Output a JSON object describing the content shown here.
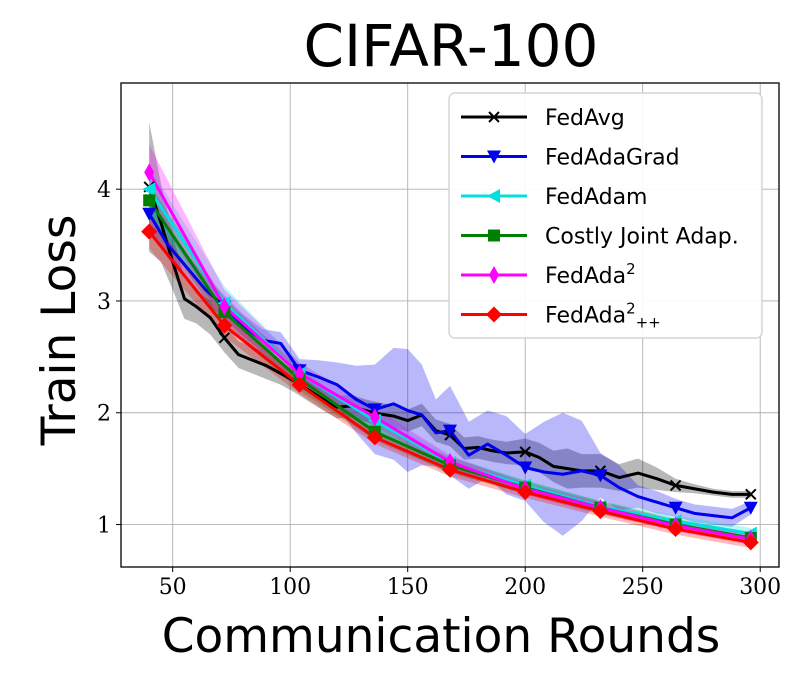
{
  "chart_data": {
    "type": "line",
    "title": "CIFAR-100",
    "xlabel": "Communication Rounds",
    "ylabel": "Train Loss",
    "xlim": [
      28,
      308
    ],
    "ylim": [
      0.62,
      4.95
    ],
    "xticks": [
      50,
      100,
      150,
      200,
      250,
      300
    ],
    "yticks": [
      1,
      2,
      3,
      4
    ],
    "xtick_labels": [
      "50",
      "100",
      "150",
      "200",
      "250",
      "300"
    ],
    "ytick_labels": [
      "1",
      "2",
      "3",
      "4"
    ],
    "grid": true,
    "legend_position": "top-right",
    "marker_x": [
      40,
      72,
      104,
      136,
      168,
      200,
      232,
      264,
      296
    ],
    "series": [
      {
        "name": "FedAvg",
        "color": "#000000",
        "marker": "x",
        "x": [
          40,
          45,
          50,
          55,
          60,
          66,
          72,
          78,
          84,
          90,
          96,
          102,
          108,
          114,
          120,
          126,
          132,
          138,
          144,
          150,
          156,
          162,
          168,
          174,
          180,
          186,
          192,
          200,
          206,
          212,
          218,
          224,
          232,
          240,
          248,
          256,
          264,
          272,
          280,
          288,
          296
        ],
        "y": [
          4.02,
          3.7,
          3.35,
          3.02,
          2.95,
          2.85,
          2.67,
          2.52,
          2.47,
          2.42,
          2.35,
          2.28,
          2.2,
          2.12,
          2.05,
          2.06,
          2.02,
          1.99,
          1.97,
          1.93,
          1.98,
          1.84,
          1.8,
          1.68,
          1.69,
          1.66,
          1.64,
          1.65,
          1.6,
          1.52,
          1.5,
          1.48,
          1.48,
          1.42,
          1.46,
          1.41,
          1.35,
          1.32,
          1.29,
          1.27,
          1.27
        ],
        "band": [
          0.58,
          0.35,
          0.25,
          0.18,
          0.15,
          0.15,
          0.13,
          0.12,
          0.12,
          0.12,
          0.1,
          0.1,
          0.1,
          0.1,
          0.1,
          0.1,
          0.1,
          0.1,
          0.1,
          0.1,
          0.1,
          0.1,
          0.1,
          0.1,
          0.1,
          0.1,
          0.1,
          0.12,
          0.13,
          0.14,
          0.18,
          0.15,
          0.15,
          0.12,
          0.13,
          0.1,
          0.06,
          0.04,
          0.03,
          0.03,
          0.03
        ]
      },
      {
        "name": "FedAdaGrad",
        "color": "#0000ee",
        "marker": "v",
        "x": [
          40,
          48,
          56,
          64,
          72,
          80,
          88,
          96,
          104,
          112,
          120,
          128,
          136,
          144,
          150,
          156,
          162,
          168,
          176,
          184,
          192,
          200,
          208,
          216,
          224,
          232,
          240,
          248,
          256,
          264,
          272,
          280,
          288,
          296
        ],
        "y": [
          3.78,
          3.5,
          3.3,
          3.1,
          2.95,
          2.78,
          2.65,
          2.62,
          2.38,
          2.32,
          2.25,
          2.12,
          2.03,
          2.08,
          2.02,
          1.98,
          1.82,
          1.84,
          1.62,
          1.72,
          1.62,
          1.51,
          1.47,
          1.45,
          1.48,
          1.44,
          1.33,
          1.25,
          1.2,
          1.15,
          1.1,
          1.08,
          1.06,
          1.15
        ],
        "band": [
          0.12,
          0.12,
          0.12,
          0.12,
          0.1,
          0.1,
          0.1,
          0.1,
          0.1,
          0.15,
          0.2,
          0.3,
          0.4,
          0.5,
          0.55,
          0.45,
          0.3,
          0.4,
          0.3,
          0.3,
          0.35,
          0.3,
          0.45,
          0.55,
          0.45,
          0.2,
          0.2,
          0.1,
          0.1,
          0.08,
          0.08,
          0.08,
          0.08,
          0.06
        ]
      },
      {
        "name": "FedAdam",
        "color": "#00e0e0",
        "marker": "<",
        "x": [
          40,
          72,
          104,
          136,
          168,
          200,
          232,
          264,
          296
        ],
        "y": [
          4.0,
          2.98,
          2.35,
          1.93,
          1.55,
          1.35,
          1.16,
          1.03,
          0.92
        ],
        "band": [
          0.2,
          0.15,
          0.1,
          0.08,
          0.06,
          0.05,
          0.05,
          0.05,
          0.05
        ]
      },
      {
        "name": "Costly Joint Adap.",
        "color": "#008000",
        "marker": "s",
        "x": [
          40,
          72,
          104,
          136,
          168,
          200,
          232,
          264,
          296
        ],
        "y": [
          3.9,
          2.9,
          2.3,
          1.83,
          1.53,
          1.33,
          1.15,
          1.0,
          0.88
        ],
        "band": [
          0.15,
          0.12,
          0.1,
          0.08,
          0.07,
          0.06,
          0.06,
          0.05,
          0.05
        ]
      },
      {
        "name": "FedAda<sup>2</sup>",
        "color": "#ff00ff",
        "marker": "d",
        "x": [
          40,
          72,
          104,
          136,
          168,
          200,
          232,
          264,
          296
        ],
        "y": [
          4.15,
          2.95,
          2.35,
          1.96,
          1.56,
          1.32,
          1.15,
          0.99,
          0.87
        ],
        "band": [
          0.25,
          0.15,
          0.1,
          0.08,
          0.06,
          0.05,
          0.05,
          0.05,
          0.05
        ]
      },
      {
        "name": "FedAda<sup>2</sup><sub>++</sub>",
        "color": "#ff0000",
        "marker": "D",
        "x": [
          40,
          72,
          104,
          136,
          168,
          200,
          232,
          264,
          296
        ],
        "y": [
          3.62,
          2.78,
          2.25,
          1.78,
          1.49,
          1.29,
          1.12,
          0.96,
          0.84
        ],
        "band": [
          0.15,
          0.1,
          0.08,
          0.06,
          0.06,
          0.05,
          0.05,
          0.05,
          0.05
        ]
      }
    ],
    "legend": [
      {
        "base": "FedAvg",
        "sup": "",
        "sub": ""
      },
      {
        "base": "FedAdaGrad",
        "sup": "",
        "sub": ""
      },
      {
        "base": "FedAdam",
        "sup": "",
        "sub": ""
      },
      {
        "base": "Costly Joint Adap.",
        "sup": "",
        "sub": ""
      },
      {
        "base": "FedAda",
        "sup": "2",
        "sub": ""
      },
      {
        "base": "FedAda",
        "sup": "2",
        "sub": "++"
      }
    ]
  }
}
